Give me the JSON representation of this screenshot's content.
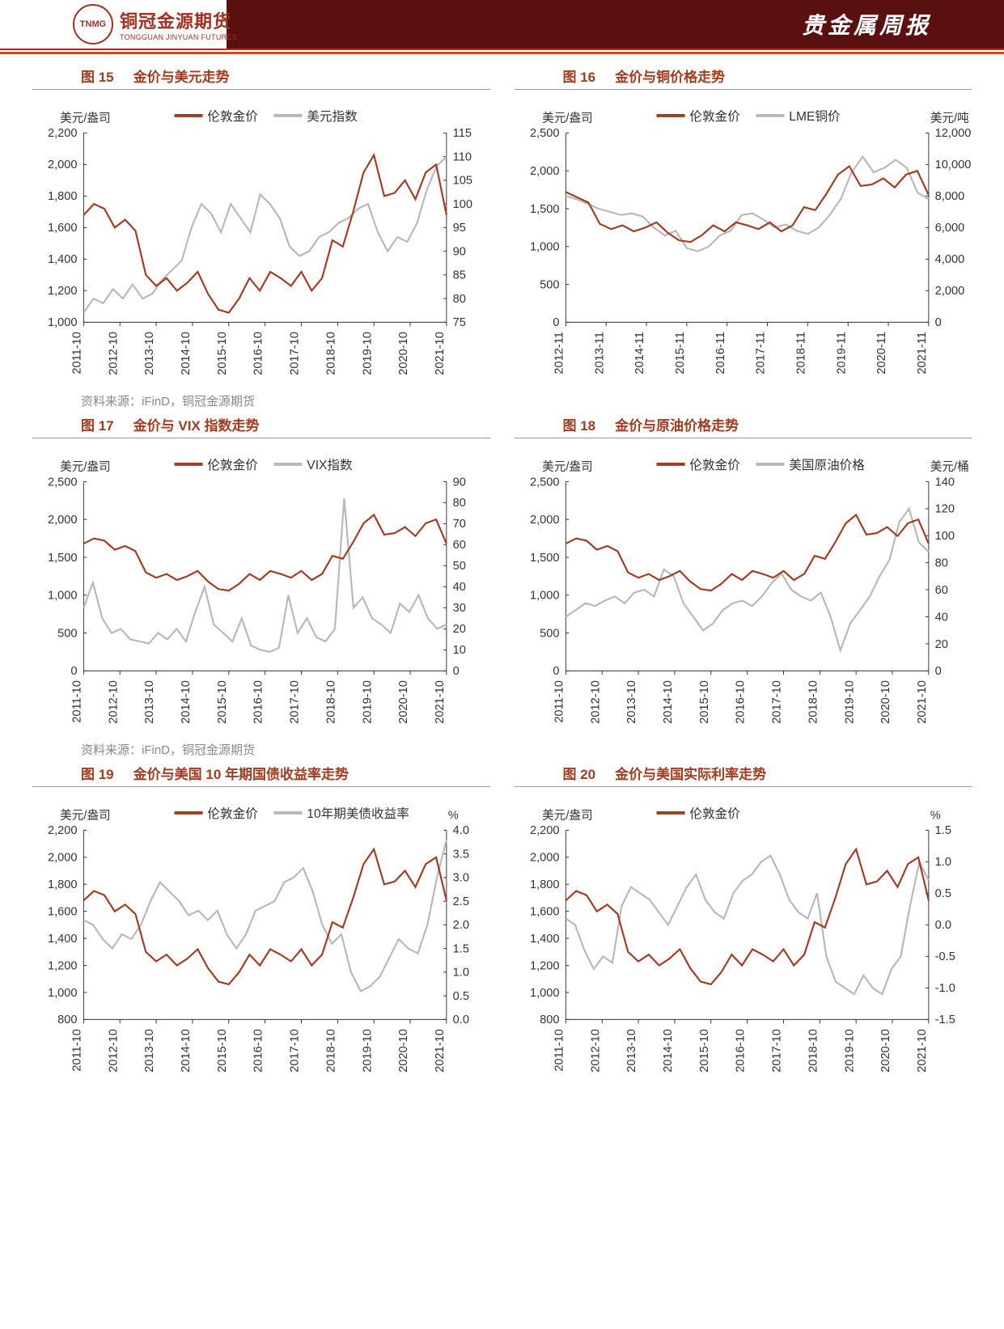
{
  "header": {
    "logo_badge": "TNMG",
    "logo_cn": "铜冠金源期货",
    "logo_en": "TONGGUAN JINYUAN FUTURES",
    "title": "贵金属周报"
  },
  "source_text": "资料来源：iFinD，铜冠金源期货",
  "colors": {
    "primary": "#a33a22",
    "secondary": "#b8b8b8",
    "axis": "#333333",
    "title": "#a23c1f",
    "header_dark": "#5a1010",
    "accent": "#c94a2f"
  },
  "charts": [
    {
      "id": 15,
      "title": "金价与美元走势",
      "yL_label": "美元/盎司",
      "yR_label": "",
      "legend": [
        "伦敦金价",
        "美元指数"
      ],
      "x_ticks": [
        "2011-10",
        "2012-10",
        "2013-10",
        "2014-10",
        "2015-10",
        "2016-10",
        "2017-10",
        "2018-10",
        "2019-10",
        "2020-10",
        "2021-10"
      ],
      "yL": {
        "min": 1000,
        "max": 2200,
        "step": 200
      },
      "yR": {
        "min": 75,
        "max": 115,
        "step": 5
      },
      "sL": [
        1680,
        1750,
        1720,
        1600,
        1650,
        1580,
        1300,
        1230,
        1280,
        1200,
        1250,
        1320,
        1180,
        1080,
        1060,
        1150,
        1280,
        1200,
        1320,
        1280,
        1230,
        1320,
        1200,
        1280,
        1520,
        1480,
        1700,
        1950,
        2060,
        1800,
        1820,
        1900,
        1780,
        1950,
        2000,
        1680
      ],
      "sR": [
        77,
        80,
        79,
        82,
        80,
        83,
        80,
        81,
        84,
        86,
        88,
        95,
        100,
        98,
        94,
        100,
        97,
        94,
        102,
        100,
        97,
        91,
        89,
        90,
        93,
        94,
        96,
        97,
        99,
        100,
        94,
        90,
        93,
        92,
        96,
        103,
        108,
        110
      ]
    },
    {
      "id": 16,
      "title": "金价与铜价格走势",
      "yL_label": "美元/盎司",
      "yR_label": "美元/吨",
      "legend": [
        "伦敦金价",
        "LME铜价"
      ],
      "x_ticks": [
        "2012-11",
        "2013-11",
        "2014-11",
        "2015-11",
        "2016-11",
        "2017-11",
        "2018-11",
        "2019-11",
        "2020-11",
        "2021-11"
      ],
      "yL": {
        "min": 0,
        "max": 2500,
        "step": 500
      },
      "yR": {
        "min": 0,
        "max": 12000,
        "step": 2000
      },
      "sL": [
        1720,
        1650,
        1580,
        1300,
        1230,
        1280,
        1200,
        1250,
        1320,
        1180,
        1080,
        1060,
        1150,
        1280,
        1200,
        1320,
        1280,
        1230,
        1320,
        1200,
        1280,
        1520,
        1480,
        1700,
        1950,
        2060,
        1800,
        1820,
        1900,
        1780,
        1950,
        2000,
        1680
      ],
      "sR": [
        8000,
        7800,
        7500,
        7200,
        7000,
        6800,
        6900,
        6700,
        6000,
        5500,
        5800,
        4700,
        4500,
        4800,
        5500,
        5800,
        6800,
        6900,
        6500,
        6000,
        6200,
        5800,
        5600,
        6000,
        6800,
        7800,
        9500,
        10500,
        9500,
        9800,
        10300,
        9800,
        8200,
        7800
      ]
    },
    {
      "id": 17,
      "title": "金价与 VIX 指数走势",
      "yL_label": "美元/盎司",
      "yR_label": "",
      "legend": [
        "伦敦金价",
        "VIX指数"
      ],
      "x_ticks": [
        "2011-10",
        "2012-10",
        "2013-10",
        "2014-10",
        "2015-10",
        "2016-10",
        "2017-10",
        "2018-10",
        "2019-10",
        "2020-10",
        "2021-10"
      ],
      "yL": {
        "min": 0,
        "max": 2500,
        "step": 500
      },
      "yR": {
        "min": 0,
        "max": 90,
        "step": 10
      },
      "sL": [
        1680,
        1750,
        1720,
        1600,
        1650,
        1580,
        1300,
        1230,
        1280,
        1200,
        1250,
        1320,
        1180,
        1080,
        1060,
        1150,
        1280,
        1200,
        1320,
        1280,
        1230,
        1320,
        1200,
        1280,
        1520,
        1480,
        1700,
        1950,
        2060,
        1800,
        1820,
        1900,
        1780,
        1950,
        2000,
        1680
      ],
      "sR": [
        30,
        42,
        25,
        18,
        20,
        15,
        14,
        13,
        18,
        15,
        20,
        14,
        28,
        40,
        22,
        18,
        14,
        25,
        12,
        10,
        9,
        11,
        36,
        18,
        25,
        16,
        14,
        20,
        82,
        30,
        35,
        25,
        22,
        18,
        32,
        28,
        36,
        25,
        20,
        22
      ]
    },
    {
      "id": 18,
      "title": "金价与原油价格走势",
      "yL_label": "美元/盎司",
      "yR_label": "美元/桶",
      "legend": [
        "伦敦金价",
        "美国原油价格"
      ],
      "x_ticks": [
        "2011-10",
        "2012-10",
        "2013-10",
        "2014-10",
        "2015-10",
        "2016-10",
        "2017-10",
        "2018-10",
        "2019-10",
        "2020-10",
        "2021-10"
      ],
      "yL": {
        "min": 0,
        "max": 2500,
        "step": 500
      },
      "yR": {
        "min": 0,
        "max": 140,
        "step": 20
      },
      "sL": [
        1680,
        1750,
        1720,
        1600,
        1650,
        1580,
        1300,
        1230,
        1280,
        1200,
        1250,
        1320,
        1180,
        1080,
        1060,
        1150,
        1280,
        1200,
        1320,
        1280,
        1230,
        1320,
        1200,
        1280,
        1520,
        1480,
        1700,
        1950,
        2060,
        1800,
        1820,
        1900,
        1780,
        1950,
        2000,
        1680
      ],
      "sR": [
        40,
        45,
        50,
        48,
        52,
        55,
        50,
        58,
        60,
        55,
        75,
        70,
        50,
        40,
        30,
        35,
        45,
        50,
        52,
        48,
        55,
        65,
        72,
        60,
        55,
        52,
        58,
        40,
        15,
        35,
        45,
        55,
        70,
        82,
        110,
        120,
        95,
        88
      ]
    },
    {
      "id": 19,
      "title": "金价与美国 10 年期国债收益率走势",
      "yL_label": "美元/盎司",
      "yR_label": "%",
      "legend": [
        "伦敦金价",
        "10年期美债收益率"
      ],
      "x_ticks": [
        "2011-10",
        "2012-10",
        "2013-10",
        "2014-10",
        "2015-10",
        "2016-10",
        "2017-10",
        "2018-10",
        "2019-10",
        "2020-10",
        "2021-10"
      ],
      "yL": {
        "min": 800,
        "max": 2200,
        "step": 200
      },
      "yR": {
        "min": 0.0,
        "max": 4.0,
        "step": 0.5
      },
      "sL": [
        1680,
        1750,
        1720,
        1600,
        1650,
        1580,
        1300,
        1230,
        1280,
        1200,
        1250,
        1320,
        1180,
        1080,
        1060,
        1150,
        1280,
        1200,
        1320,
        1280,
        1230,
        1320,
        1200,
        1280,
        1520,
        1480,
        1700,
        1950,
        2060,
        1800,
        1820,
        1900,
        1780,
        1950,
        2000,
        1680
      ],
      "sR": [
        2.1,
        2.0,
        1.7,
        1.5,
        1.8,
        1.7,
        2.0,
        2.5,
        2.9,
        2.7,
        2.5,
        2.2,
        2.3,
        2.1,
        2.3,
        1.8,
        1.5,
        1.8,
        2.3,
        2.4,
        2.5,
        2.9,
        3.0,
        3.2,
        2.7,
        2.0,
        1.6,
        1.8,
        1.0,
        0.6,
        0.7,
        0.9,
        1.3,
        1.7,
        1.5,
        1.4,
        2.0,
        3.0,
        3.8
      ]
    },
    {
      "id": 20,
      "title": "金价与美国实际利率走势",
      "yL_label": "美元/盎司",
      "yR_label": "%",
      "legend": [
        "伦敦金价"
      ],
      "x_ticks": [
        "2011-10",
        "2012-10",
        "2013-10",
        "2014-10",
        "2015-10",
        "2016-10",
        "2017-10",
        "2018-10",
        "2019-10",
        "2020-10",
        "2021-10"
      ],
      "yL": {
        "min": 800,
        "max": 2200,
        "step": 200
      },
      "yR": {
        "min": -1.5,
        "max": 1.5,
        "step": 0.5
      },
      "sL": [
        1680,
        1750,
        1720,
        1600,
        1650,
        1580,
        1300,
        1230,
        1280,
        1200,
        1250,
        1320,
        1180,
        1080,
        1060,
        1150,
        1280,
        1200,
        1320,
        1280,
        1230,
        1320,
        1200,
        1280,
        1520,
        1480,
        1700,
        1950,
        2060,
        1800,
        1820,
        1900,
        1780,
        1950,
        2000,
        1680
      ],
      "sR": [
        0.1,
        0.0,
        -0.4,
        -0.7,
        -0.5,
        -0.6,
        0.3,
        0.6,
        0.5,
        0.4,
        0.2,
        0.0,
        0.3,
        0.6,
        0.8,
        0.4,
        0.2,
        0.1,
        0.5,
        0.7,
        0.8,
        1.0,
        1.1,
        0.8,
        0.4,
        0.2,
        0.1,
        0.5,
        -0.5,
        -0.9,
        -1.0,
        -1.1,
        -0.8,
        -1.0,
        -1.1,
        -0.7,
        -0.5,
        0.3,
        1.0,
        0.7
      ]
    }
  ]
}
